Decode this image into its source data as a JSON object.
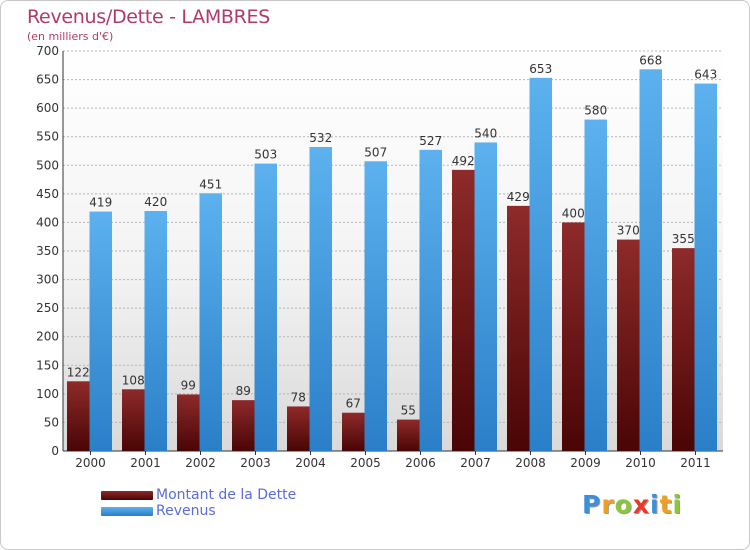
{
  "title": "Revenus/Dette - LAMBRES",
  "subtitle": "(en milliers d'€)",
  "logo": {
    "letters": [
      "P",
      "r",
      "o",
      "x",
      "i",
      "t",
      "i"
    ],
    "colors": [
      "#3c8fd8",
      "#f0a020",
      "#8cc63f",
      "#e8392c",
      "#3c8fd8",
      "#f0a020",
      "#8cc63f"
    ]
  },
  "chart_data": {
    "type": "bar",
    "title": "Revenus/Dette - LAMBRES",
    "subtitle": "(en milliers d'€)",
    "xlabel": "",
    "ylabel": "",
    "categories": [
      "2000",
      "2001",
      "2002",
      "2003",
      "2004",
      "2005",
      "2006",
      "2007",
      "2008",
      "2009",
      "2010",
      "2011"
    ],
    "series": [
      {
        "name": "Montant de la Dette",
        "color": "#7a1818",
        "values": [
          122,
          108,
          99,
          89,
          78,
          67,
          55,
          492,
          429,
          400,
          370,
          355
        ]
      },
      {
        "name": "Revenus",
        "color": "#4aa3e6",
        "values": [
          419,
          420,
          451,
          503,
          532,
          507,
          527,
          540,
          653,
          580,
          668,
          643
        ]
      }
    ],
    "ylim": [
      0,
      700
    ],
    "yticks": [
      0,
      50,
      100,
      150,
      200,
      250,
      300,
      350,
      400,
      450,
      500,
      550,
      600,
      650,
      700
    ],
    "grid": true,
    "legend_position": "bottom-left"
  }
}
